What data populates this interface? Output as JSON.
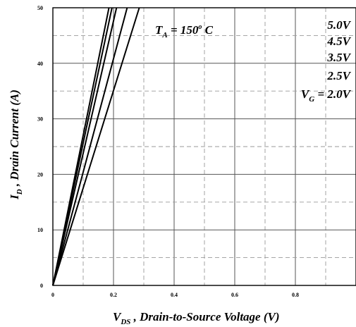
{
  "chart_data": {
    "type": "line",
    "xlabel_main": "V",
    "xlabel_sub": "DS",
    "xlabel_rest": " , Drain-to-Source Voltage (V)",
    "ylabel_main": "I",
    "ylabel_sub": "D",
    "ylabel_rest": " , Drain Current (A)",
    "xlim": [
      0,
      1.0
    ],
    "ylim": [
      0,
      50
    ],
    "x_ticks": [
      0,
      0.2,
      0.4,
      0.6,
      0.8
    ],
    "x_tick_labels": [
      "0",
      "0.2",
      "0.4",
      "0.6",
      "0.8"
    ],
    "y_ticks": [
      0,
      10,
      20,
      30,
      40,
      50
    ],
    "y_tick_labels": [
      "0",
      "10",
      "20",
      "30",
      "40",
      "50"
    ],
    "grid": true,
    "annotation": {
      "t_main": "T",
      "t_sub": "A",
      "t_eq": " = 150",
      "t_sup": "o",
      "t_unit": " C"
    },
    "legend": {
      "placement": "top-right",
      "labels": [
        "5.0V",
        "4.5V",
        "3.5V",
        "2.5V"
      ],
      "vg_main": "V",
      "vg_sub": "G",
      "vg_val": " = 2.0V"
    },
    "series": [
      {
        "label": "5.0V",
        "x": [
          0,
          0.185
        ],
        "y": [
          0,
          50
        ]
      },
      {
        "label": "4.5V",
        "x": [
          0,
          0.195
        ],
        "y": [
          0,
          50
        ]
      },
      {
        "label": "3.5V",
        "x": [
          0,
          0.21
        ],
        "y": [
          0,
          50
        ]
      },
      {
        "label": "2.5V",
        "x": [
          0,
          0.245
        ],
        "y": [
          0,
          50
        ]
      },
      {
        "label": "2.0V",
        "x": [
          0,
          0.285
        ],
        "y": [
          0,
          50
        ]
      }
    ]
  }
}
